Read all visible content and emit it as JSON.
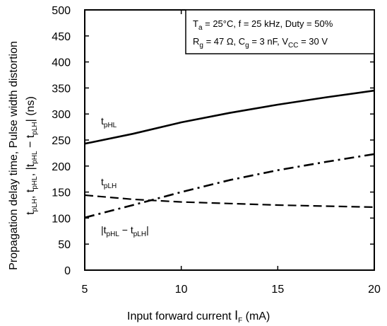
{
  "chart_data": {
    "type": "line",
    "xlabel_main": "Input forward current",
    "xlabel_symbol": "I",
    "xlabel_symbol_sub": "F",
    "xlabel_unit": "(mA)",
    "ylabel_line1": "Propagation delay time, Pulse width distortion",
    "ylabel_line2_html": "t<sub>pLH</sub>, t<sub>pHL</sub>, |t<sub>pHL</sub> − t<sub>pLH</sub>|   (ns)",
    "xlim": [
      5,
      20
    ],
    "ylim": [
      0,
      500
    ],
    "x_ticks": [
      "5",
      "10",
      "15",
      "20"
    ],
    "y_ticks": [
      "0",
      "50",
      "100",
      "150",
      "200",
      "250",
      "300",
      "350",
      "400",
      "450",
      "500"
    ],
    "grid": false,
    "conditions": {
      "line1": [
        "T",
        "a",
        " = 25°C, f = 25 kHz, Duty = 50%"
      ],
      "line2": [
        "R",
        "g",
        " = 47 Ω, C",
        "g",
        " = 3 nF, V",
        "CC",
        " = 30 V"
      ]
    },
    "series": [
      {
        "name": "tpHL",
        "label_main": "t",
        "label_sub": "pHL",
        "style": "solid",
        "x": [
          5,
          7.5,
          10,
          12.5,
          15,
          17.5,
          20
        ],
        "y": [
          243,
          262,
          284,
          302,
          318,
          332,
          345
        ]
      },
      {
        "name": "tpLH",
        "label_main": "t",
        "label_sub": "pLH",
        "style": "dashdot",
        "x": [
          5,
          7.5,
          10,
          12.5,
          15,
          17.5,
          20
        ],
        "y": [
          101,
          125,
          150,
          173,
          192,
          208,
          223
        ]
      },
      {
        "name": "|tpHL − tpLH|",
        "label_parts": [
          "|t",
          "pHL",
          " − t",
          "pLH",
          "|"
        ],
        "style": "dashed",
        "x": [
          5,
          7.5,
          10,
          12.5,
          15,
          17.5,
          20
        ],
        "y": [
          144,
          136,
          131,
          128,
          125,
          123,
          121
        ]
      }
    ]
  }
}
